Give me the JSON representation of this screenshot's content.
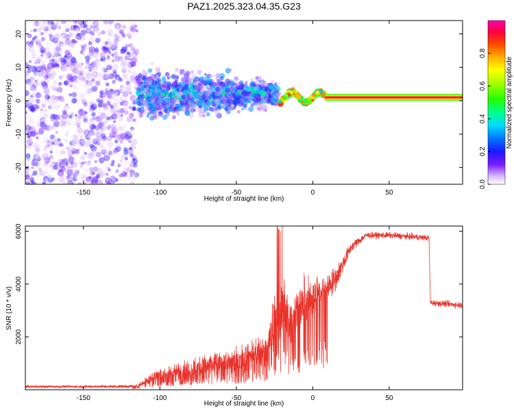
{
  "title": "PAZ1.2025.323.04.35.G23",
  "chart_data": [
    {
      "type": "heatmap",
      "title": "PAZ1.2025.323.04.35.G23",
      "xlabel": "Height of straight line (km)",
      "ylabel": "Frequency (Hz)",
      "xlim": [
        -188,
        98
      ],
      "ylim": [
        -25,
        24
      ],
      "xticks": [
        -150,
        -100,
        -50,
        0,
        50
      ],
      "yticks": [
        -20,
        -10,
        0,
        10,
        20
      ],
      "colorbar": {
        "label": "Normalized spectral amplitude",
        "range": [
          0.0,
          1.0
        ],
        "ticks": [
          "0.0",
          "0.2",
          "0.4",
          "0.6",
          "0.8"
        ],
        "colormap": "gist_ncar_like"
      },
      "regions": [
        {
          "name": "noise",
          "x": [
            -188,
            -115
          ],
          "freq_spread": [
            -25,
            24
          ],
          "amplitude": [
            0.0,
            0.2
          ]
        },
        {
          "name": "scattered-signal",
          "x": [
            -115,
            -22
          ],
          "freq_spread": [
            -10,
            12
          ],
          "amplitude": [
            0.05,
            0.5
          ]
        },
        {
          "name": "converging-signal",
          "x": [
            -22,
            8
          ],
          "freq_center": 1.0,
          "amplitude": [
            0.3,
            0.9
          ]
        },
        {
          "name": "line-tone",
          "x": [
            8,
            98
          ],
          "freq_center": 1.0,
          "amplitude": [
            0.6,
            1.0
          ]
        }
      ]
    },
    {
      "type": "line",
      "xlabel": "Height of straight line (km)",
      "ylabel": "SNR (10 * v/v)",
      "xlim": [
        -188,
        98
      ],
      "ylim": [
        0,
        6200
      ],
      "xticks": [
        -150,
        -100,
        -50,
        0,
        50
      ],
      "yticks": [
        2000,
        4000,
        6000
      ],
      "series": [
        {
          "name": "SNR",
          "color": "#e8332b",
          "envelope": [
            {
              "x": -188,
              "mean": 120,
              "spread": 60
            },
            {
              "x": -150,
              "mean": 120,
              "spread": 60
            },
            {
              "x": -115,
              "mean": 130,
              "spread": 80
            },
            {
              "x": -105,
              "mean": 500,
              "spread": 300
            },
            {
              "x": -80,
              "mean": 800,
              "spread": 500
            },
            {
              "x": -50,
              "mean": 1100,
              "spread": 700
            },
            {
              "x": -30,
              "mean": 1500,
              "spread": 900
            },
            {
              "x": -22,
              "mean": 3000,
              "spread": 2400
            },
            {
              "x": -15,
              "mean": 2700,
              "spread": 1500
            },
            {
              "x": -5,
              "mean": 3300,
              "spread": 1100
            },
            {
              "x": 5,
              "mean": 3700,
              "spread": 800
            },
            {
              "x": 15,
              "mean": 4200,
              "spread": 600
            },
            {
              "x": 25,
              "mean": 5400,
              "spread": 250
            },
            {
              "x": 35,
              "mean": 5850,
              "spread": 150
            },
            {
              "x": 50,
              "mean": 5850,
              "spread": 150
            },
            {
              "x": 76,
              "mean": 5750,
              "spread": 150
            },
            {
              "x": 77,
              "mean": 3300,
              "spread": 150
            },
            {
              "x": 98,
              "mean": 3200,
              "spread": 150
            }
          ]
        }
      ]
    }
  ]
}
